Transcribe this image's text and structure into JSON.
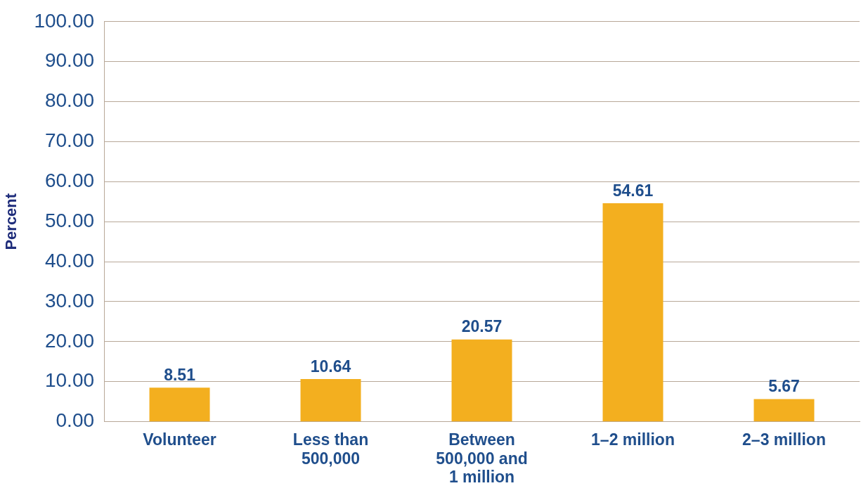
{
  "chart_data": {
    "type": "bar",
    "ylabel": "Percent",
    "categories": [
      "Volunteer",
      "Less than 500,000",
      "Between 500,000 and 1 million",
      "1–2 million",
      "2–3 million"
    ],
    "values": [
      8.51,
      10.64,
      20.57,
      54.61,
      5.67
    ],
    "color": "#f3af1f",
    "ylim": [
      0,
      100
    ],
    "yticks": [
      {
        "value": 0,
        "label": "0.00"
      },
      {
        "value": 10,
        "label": "10.00"
      },
      {
        "value": 20,
        "label": "20.00"
      },
      {
        "value": 30,
        "label": "30.00"
      },
      {
        "value": 40,
        "label": "40.00"
      },
      {
        "value": 50,
        "label": "50.00"
      },
      {
        "value": 60,
        "label": "60.00"
      },
      {
        "value": 70,
        "label": "70.00"
      },
      {
        "value": 80,
        "label": "80.00"
      },
      {
        "value": 90,
        "label": "90.00"
      },
      {
        "value": 100,
        "label": "100.00"
      }
    ],
    "grid": "y",
    "data_labels": true,
    "legend": false
  }
}
